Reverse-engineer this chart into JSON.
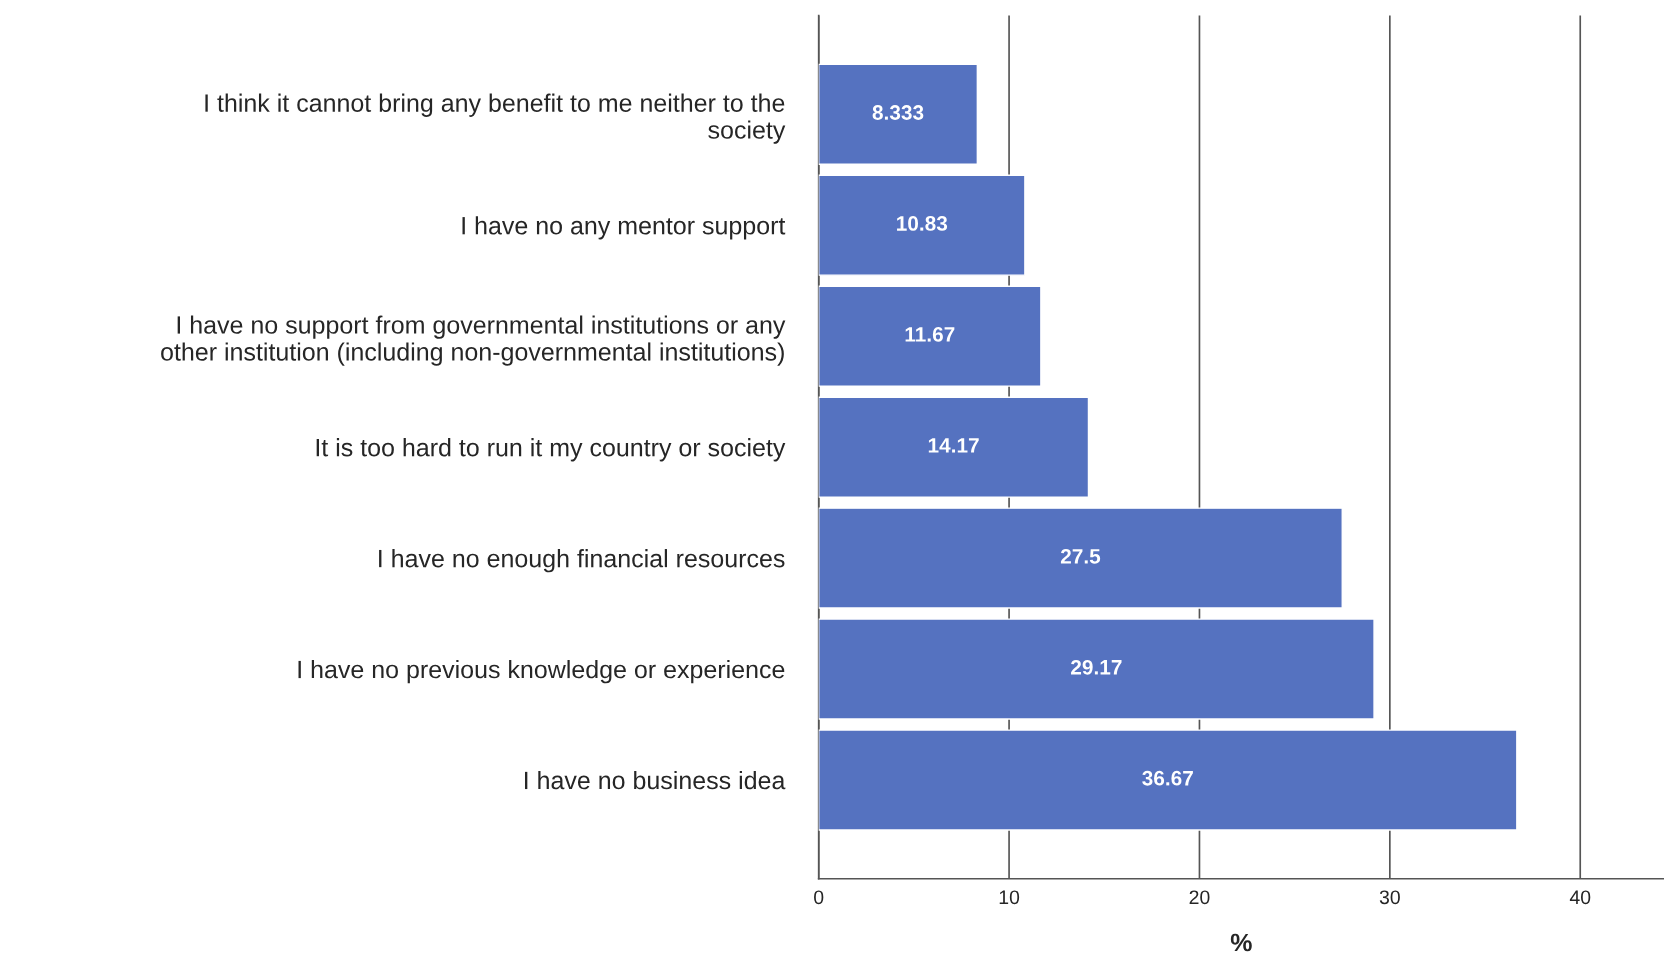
{
  "chart_data": {
    "type": "bar",
    "orientation": "horizontal",
    "xlabel": "%",
    "categories": [
      "I think it cannot bring any benefit to me neither to the\nsociety",
      "I have no any mentor support",
      "I have no support from governmental institutions or any\nother institution (including non-governmental institutions)",
      "It is too hard to run it my country or society",
      "I have no enough financial resources",
      "I have no previous knowledge or experience",
      "I have no business idea"
    ],
    "values": [
      8.333,
      10.83,
      11.67,
      14.17,
      27.5,
      29.17,
      36.67
    ],
    "color": "#5572c0",
    "xlim": [
      0,
      44.4
    ],
    "xticks": [
      0,
      10,
      20,
      30,
      40
    ],
    "grid": "x",
    "data_labels": true
  }
}
